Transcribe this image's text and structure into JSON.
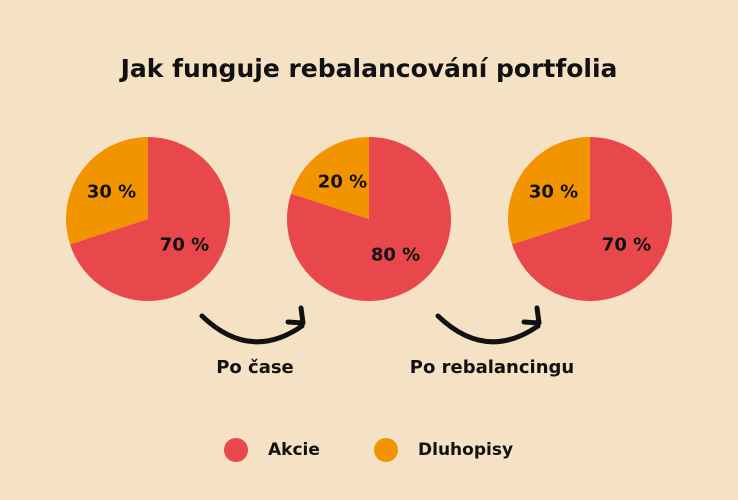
{
  "title": "Jak funguje rebalancování portfolia",
  "steps": [
    "Po čase",
    "Po rebalancingu"
  ],
  "chart_data": [
    {
      "type": "pie",
      "categories": [
        "Akcie",
        "Dluhopisy"
      ],
      "values": [
        70,
        30
      ],
      "value_labels": [
        "70 %",
        "30 %"
      ],
      "colors": [
        "#e8474c",
        "#f29400"
      ]
    },
    {
      "type": "pie",
      "categories": [
        "Akcie",
        "Dluhopisy"
      ],
      "values": [
        80,
        20
      ],
      "value_labels": [
        "80 %",
        "20 %"
      ],
      "colors": [
        "#e8474c",
        "#f29400"
      ]
    },
    {
      "type": "pie",
      "categories": [
        "Akcie",
        "Dluhopisy"
      ],
      "values": [
        70,
        30
      ],
      "value_labels": [
        "70 %",
        "30 %"
      ],
      "colors": [
        "#e8474c",
        "#f29400"
      ]
    }
  ]
}
